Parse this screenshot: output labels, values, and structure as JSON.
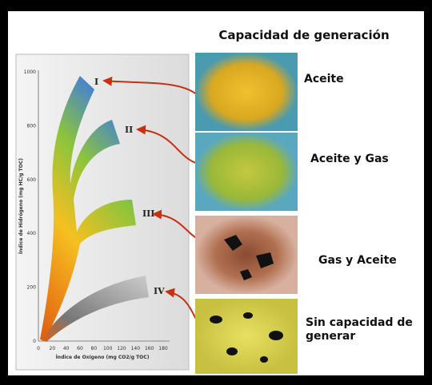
{
  "title": "Capacidad de generación",
  "axes": {
    "y_label": "Índice de Hidrógeno (mg HC/g TOC)",
    "x_label": "Índice de Oxígeno (mg CO2/g TOC)",
    "y_ticks": [
      0,
      200,
      400,
      600,
      800,
      1000
    ],
    "x_ticks": [
      0,
      20,
      40,
      60,
      80,
      100,
      120,
      140,
      160,
      180
    ]
  },
  "types": [
    {
      "label": "I",
      "result": "Aceite"
    },
    {
      "label": "II",
      "result": "Aceite y Gas"
    },
    {
      "label": "III",
      "result": "Gas y Aceite"
    },
    {
      "label": "IV",
      "result": "Sin capacidad de generar"
    }
  ]
}
